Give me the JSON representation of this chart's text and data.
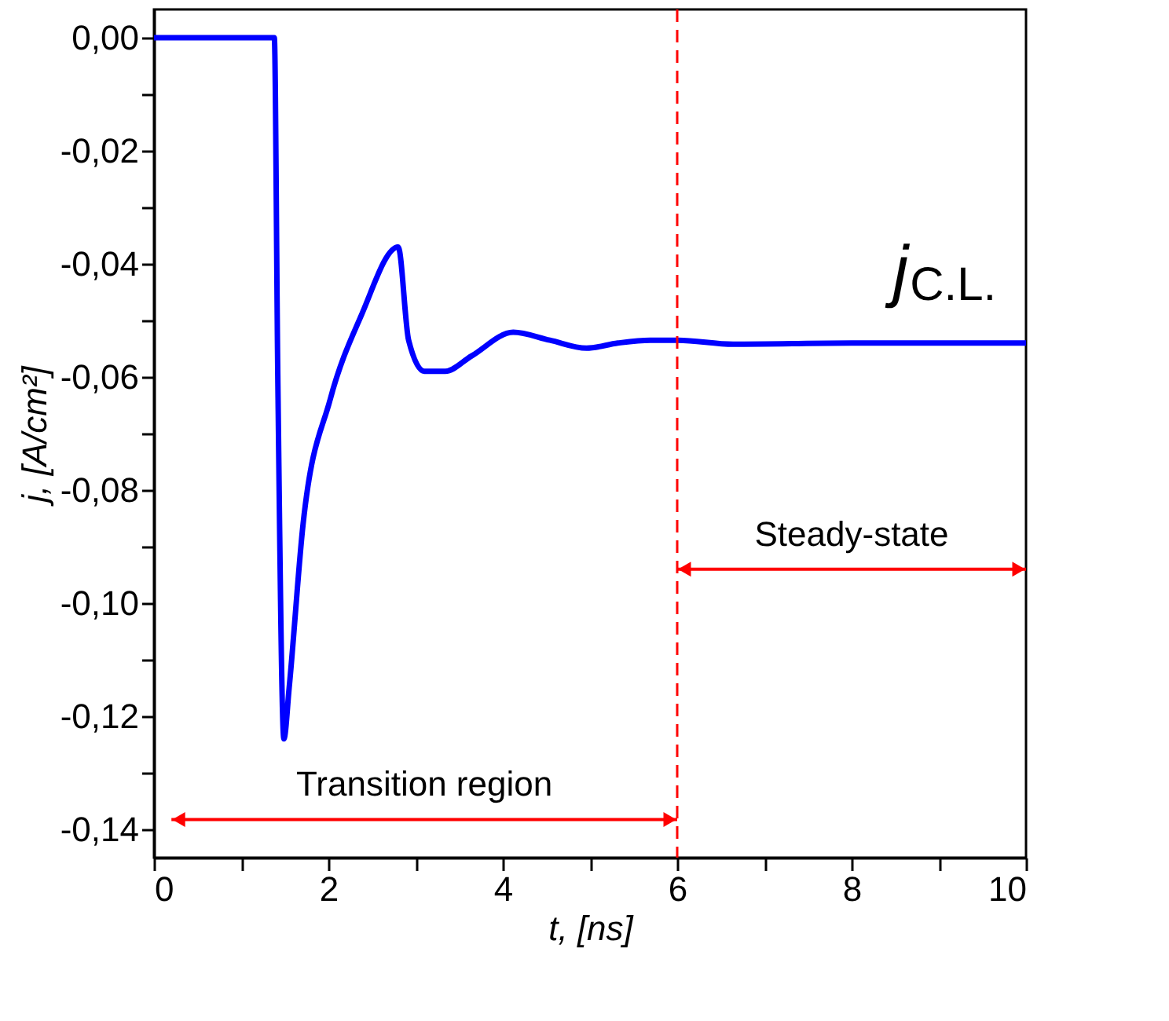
{
  "chart_data": {
    "type": "line",
    "xlabel": "t, [ns]",
    "ylabel": "j, [A/cm²]",
    "x": [
      0,
      1.38,
      1.42,
      1.49,
      1.55,
      1.71,
      2.02,
      2.38,
      2.8,
      2.92,
      3.1,
      3.34,
      3.64,
      4.12,
      4.54,
      4.96,
      5.32,
      5.69,
      6.01,
      6.64,
      8.0,
      10
    ],
    "series": [
      {
        "color": "#0000ff",
        "values": [
          0,
          0,
          -0.06,
          -0.124,
          -0.115,
          -0.086,
          -0.064,
          -0.049,
          -0.037,
          -0.0535,
          -0.059,
          -0.059,
          -0.0563,
          -0.0521,
          -0.0535,
          -0.0549,
          -0.054,
          -0.0535,
          -0.0535,
          -0.0542,
          -0.054,
          -0.054
        ]
      }
    ],
    "xlim": [
      0,
      10
    ],
    "ylim": [
      -0.145,
      0.005
    ],
    "xticks": [
      0,
      {
        "value": 1,
        "label": null
      },
      2,
      {
        "value": 3,
        "label": null
      },
      4,
      {
        "value": 5,
        "label": null
      },
      6,
      {
        "value": 7,
        "label": null
      },
      8,
      {
        "value": 9,
        "label": null
      },
      10
    ],
    "yticks": [
      {
        "value": 0,
        "label": "0,00"
      },
      {
        "value": -0.01,
        "label": null
      },
      {
        "value": -0.02,
        "label": "-0,02"
      },
      {
        "value": -0.03,
        "label": null
      },
      {
        "value": -0.04,
        "label": "-0,04"
      },
      {
        "value": -0.05,
        "label": null
      },
      {
        "value": -0.06,
        "label": "-0,06"
      },
      {
        "value": -0.07,
        "label": null
      },
      {
        "value": -0.08,
        "label": "-0,08"
      },
      {
        "value": -0.09,
        "label": null
      },
      {
        "value": -0.1,
        "label": "-0,10"
      },
      {
        "value": -0.11,
        "label": null
      },
      {
        "value": -0.12,
        "label": "-0,12"
      },
      {
        "value": -0.13,
        "label": null
      },
      {
        "value": -0.14,
        "label": "-0,14"
      }
    ],
    "ref_lines": [
      {
        "axis": "x",
        "value": 6,
        "color": "#ff0000",
        "line_style": "dashed"
      }
    ],
    "annotations": [
      "Transition region",
      "Steady-state",
      "j$_{C.L.}$"
    ],
    "grid": false,
    "marker": "none",
    "line_style": "solid"
  }
}
